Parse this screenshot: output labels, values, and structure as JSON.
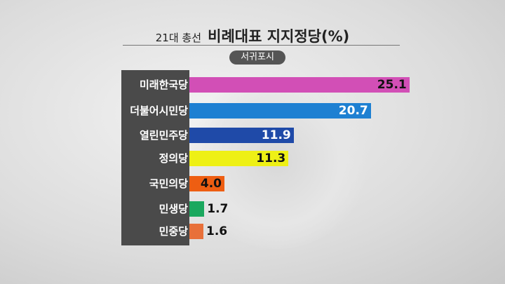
{
  "chart_data": {
    "type": "bar",
    "orientation": "horizontal",
    "title_prefix": "21대 총선",
    "title": "비례대표 지지정당(%)",
    "subtitle": "서귀포시",
    "categories": [
      "미래한국당",
      "더불어시민당",
      "열린민주당",
      "정의당",
      "국민의당",
      "민생당",
      "민중당"
    ],
    "values": [
      25.1,
      20.7,
      11.9,
      11.3,
      4.0,
      1.7,
      1.6
    ],
    "colors": [
      "#d24fb6",
      "#1e80d2",
      "#1f4aa8",
      "#eef015",
      "#ee5e12",
      "#1aa85e",
      "#e8703a"
    ],
    "label_colors": [
      "#111",
      "#fff",
      "#fff",
      "#111",
      "#111",
      "#111",
      "#111"
    ],
    "xlim": [
      0,
      26
    ]
  }
}
